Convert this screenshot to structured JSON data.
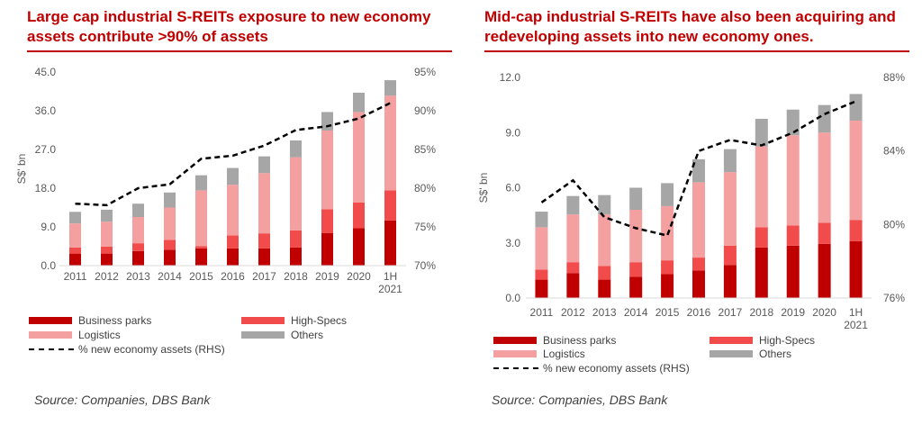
{
  "colors": {
    "business_parks": "#c00000",
    "high_specs": "#f24b4b",
    "logistics": "#f4a0a0",
    "others": "#a6a6a6",
    "line": "#000000",
    "title": "#c00000"
  },
  "panels": [
    {
      "title": "Large cap industrial S-REITs exposure to new economy assets contribute >90% of assets",
      "source": "Source: Companies, DBS Bank",
      "legend": {
        "business_parks": "Business parks",
        "high_specs": "High-Specs",
        "logistics": "Logistics",
        "others": "Others",
        "line": "% new economy assets (RHS)"
      }
    },
    {
      "title": "Mid-cap industrial S-REITs have also been acquiring and redeveloping assets into new economy ones.",
      "source": "Source: Companies, DBS Bank",
      "legend": {
        "business_parks": "Business parks",
        "high_specs": "High-Specs",
        "logistics": "Logistics",
        "others": "Others",
        "line": "% new economy assets (RHS)"
      }
    }
  ],
  "chart_data": [
    {
      "type": "bar",
      "stacked": true,
      "categories": [
        "2011",
        "2012",
        "2013",
        "2014",
        "2015",
        "2016",
        "2017",
        "2018",
        "2019",
        "2020",
        "1H 2021"
      ],
      "ylabel": "S$' bn",
      "ylim": [
        0,
        45
      ],
      "yticks": [
        "0.0",
        "9.0",
        "18.0",
        "27.0",
        "36.0",
        "45.0"
      ],
      "y2lim": [
        70,
        95
      ],
      "y2ticks": [
        "70%",
        "75%",
        "80%",
        "85%",
        "90%",
        "95%"
      ],
      "series": [
        {
          "name": "Business parks",
          "key": "business_parks",
          "values": [
            2.8,
            2.8,
            3.4,
            3.7,
            4.0,
            4.0,
            4.0,
            4.2,
            7.6,
            8.7,
            10.5
          ]
        },
        {
          "name": "High-Specs",
          "key": "high_specs",
          "values": [
            1.4,
            1.6,
            1.8,
            2.3,
            0.5,
            3.0,
            3.5,
            4.0,
            5.5,
            6.0,
            7.0
          ]
        },
        {
          "name": "Logistics",
          "key": "logistics",
          "values": [
            5.6,
            5.8,
            6.1,
            7.5,
            13.0,
            11.8,
            14.0,
            17.0,
            18.3,
            21.0,
            22.0
          ]
        },
        {
          "name": "Others",
          "key": "others",
          "values": [
            2.7,
            2.8,
            3.1,
            3.5,
            3.5,
            3.9,
            3.9,
            3.9,
            4.3,
            4.5,
            3.6
          ]
        }
      ],
      "line": {
        "name": "% new economy assets (RHS)",
        "values": [
          78.0,
          77.8,
          80.0,
          80.5,
          83.8,
          84.2,
          85.5,
          87.5,
          88.0,
          89.0,
          91.0
        ]
      },
      "legend_position": "bottom",
      "grid": false
    },
    {
      "type": "bar",
      "stacked": true,
      "categories": [
        "2011",
        "2012",
        "2013",
        "2014",
        "2015",
        "2016",
        "2017",
        "2018",
        "2019",
        "2020",
        "1H 2021"
      ],
      "ylabel": "S$' bn",
      "ylim": [
        0,
        12
      ],
      "yticks": [
        "0.0",
        "3.0",
        "6.0",
        "9.0",
        "12.0"
      ],
      "y2lim": [
        76,
        88
      ],
      "y2ticks": [
        "76%",
        "80%",
        "84%",
        "88%"
      ],
      "series": [
        {
          "name": "Business parks",
          "key": "business_parks",
          "values": [
            1.0,
            1.35,
            1.0,
            1.15,
            1.3,
            1.5,
            1.8,
            2.75,
            2.85,
            2.95,
            3.1
          ]
        },
        {
          "name": "High-Specs",
          "key": "high_specs",
          "values": [
            0.55,
            0.6,
            0.75,
            0.8,
            0.75,
            0.7,
            1.05,
            1.1,
            1.1,
            1.15,
            1.15
          ]
        },
        {
          "name": "Logistics",
          "key": "logistics",
          "values": [
            2.3,
            2.6,
            2.8,
            2.85,
            2.95,
            4.1,
            4.0,
            4.4,
            4.9,
            4.9,
            5.4
          ]
        },
        {
          "name": "Others",
          "key": "others",
          "values": [
            0.85,
            1.0,
            1.05,
            1.2,
            1.25,
            1.25,
            1.25,
            1.5,
            1.4,
            1.5,
            1.45
          ]
        }
      ],
      "line": {
        "name": "% new economy assets (RHS)",
        "values": [
          81.2,
          82.4,
          80.4,
          79.8,
          79.4,
          84.0,
          84.6,
          84.3,
          85.0,
          86.0,
          86.7
        ]
      },
      "legend_position": "bottom",
      "grid": false
    }
  ]
}
